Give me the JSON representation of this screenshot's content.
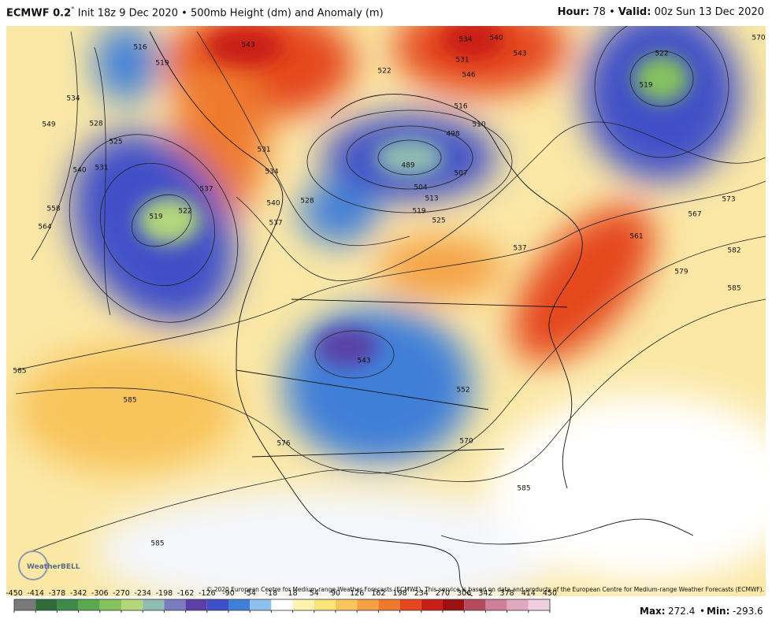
{
  "header": {
    "model": "ECMWF 0.2",
    "degree": "°",
    "init": "Init 18z 9 Dec 2020",
    "separator": "•",
    "product": "500mb Height (dm) and Anomaly (m)",
    "hour_label": "Hour:",
    "hour": "78",
    "valid_label": "Valid:",
    "valid": "00z Sun 13 Dec 2020"
  },
  "map": {
    "contour_labels": [
      543,
      516,
      519,
      534,
      549,
      528,
      525,
      531,
      540,
      558,
      564,
      519,
      522,
      537,
      522,
      534,
      540,
      537,
      531,
      528,
      516,
      510,
      498,
      489,
      504,
      507,
      519,
      513,
      525,
      522,
      519,
      570,
      537,
      531,
      534,
      540,
      543,
      546,
      573,
      567,
      561,
      582,
      579,
      585,
      585,
      585,
      585,
      576,
      543,
      552,
      570,
      585
    ],
    "logo": "WeatherBELL",
    "copyright": "© 2020 European Centre for Medium-range Weather Forecasts (ECMWF). This service is based on data and products of the European Centre for Medium-range Weather Forecasts (ECMWF)."
  },
  "colorbar": {
    "ticks": [
      -450,
      -414,
      -378,
      -342,
      -306,
      -270,
      -234,
      -198,
      -162,
      -126,
      -90,
      -54,
      -18,
      18,
      54,
      90,
      126,
      162,
      198,
      234,
      270,
      306,
      342,
      378,
      414,
      450
    ],
    "colors": [
      "#7a7a7a",
      "#2e6b3a",
      "#3d8b46",
      "#5aa850",
      "#86c25e",
      "#b3d77a",
      "#8fbcb0",
      "#7b7cc0",
      "#5b3fa6",
      "#3f4fc8",
      "#3f7fd8",
      "#8ec0ee",
      "#ffffff",
      "#fff3b0",
      "#fbe37a",
      "#f8c45c",
      "#f5a144",
      "#ef7a2e",
      "#e5461d",
      "#c91f16",
      "#9b1010",
      "#b44a5a",
      "#cf7f99",
      "#e2a8c0",
      "#f0d0e0"
    ]
  },
  "footer": {
    "max_label": "Max:",
    "max": 272.4,
    "separator": "•",
    "min_label": "Min:",
    "min": -293.6
  }
}
